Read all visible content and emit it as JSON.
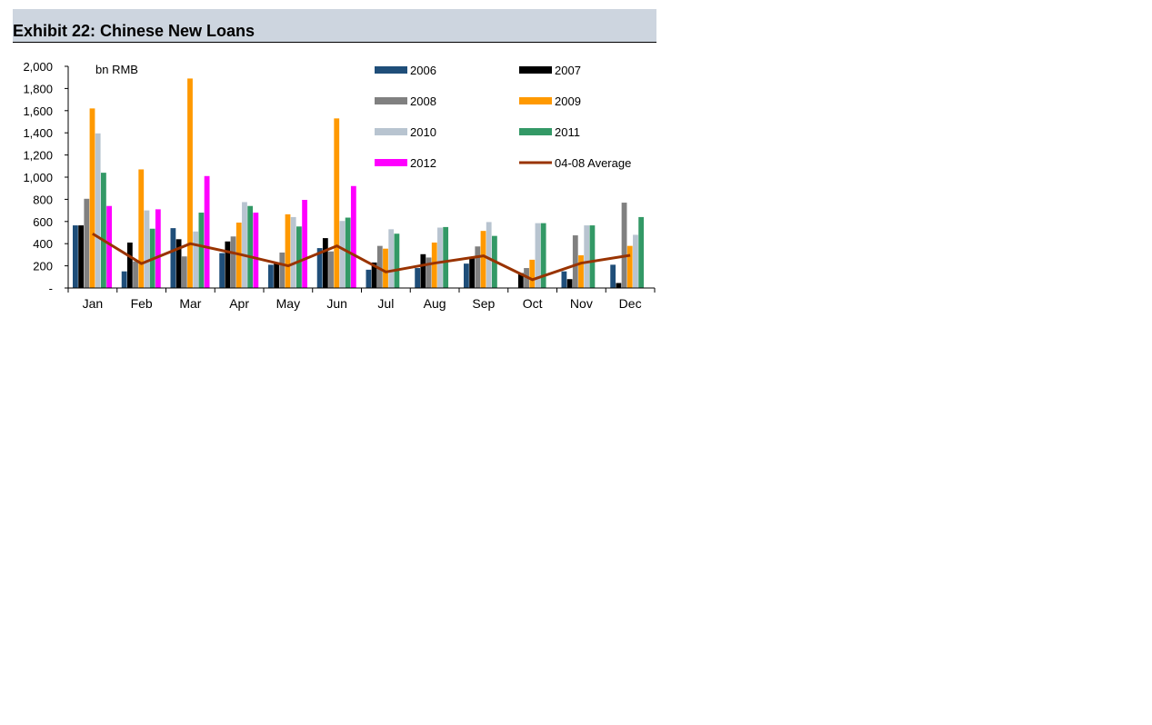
{
  "title": "Exhibit 22: Chinese New Loans",
  "chart_data": {
    "type": "bar",
    "unit_label": "bn RMB",
    "categories": [
      "Jan",
      "Feb",
      "Mar",
      "Apr",
      "May",
      "Jun",
      "Jul",
      "Aug",
      "Sep",
      "Oct",
      "Nov",
      "Dec"
    ],
    "ylim": [
      0,
      2000
    ],
    "yticks": [
      {
        "v": 0,
        "label": "-"
      },
      {
        "v": 200,
        "label": "200"
      },
      {
        "v": 400,
        "label": "400"
      },
      {
        "v": 600,
        "label": "600"
      },
      {
        "v": 800,
        "label": "800"
      },
      {
        "v": 1000,
        "label": "1,000"
      },
      {
        "v": 1200,
        "label": "1,200"
      },
      {
        "v": 1400,
        "label": "1,400"
      },
      {
        "v": 1600,
        "label": "1,600"
      },
      {
        "v": 1800,
        "label": "1,800"
      },
      {
        "v": 2000,
        "label": "2,000"
      }
    ],
    "series": [
      {
        "name": "2006",
        "color": "#1f4e79",
        "values": [
          565,
          150,
          540,
          315,
          210,
          360,
          165,
          180,
          220,
          0,
          150,
          210
        ]
      },
      {
        "name": "2007",
        "color": "#000000",
        "values": [
          565,
          410,
          440,
          420,
          225,
          450,
          230,
          305,
          270,
          135,
          80,
          45
        ]
      },
      {
        "name": "2008",
        "color": "#808080",
        "values": [
          805,
          240,
          285,
          465,
          320,
          330,
          380,
          275,
          375,
          180,
          475,
          770
        ]
      },
      {
        "name": "2009",
        "color": "#ff9900",
        "values": [
          1620,
          1070,
          1890,
          590,
          665,
          1530,
          355,
          410,
          515,
          255,
          295,
          380
        ]
      },
      {
        "name": "2010",
        "color": "#b8c4d0",
        "values": [
          1395,
          700,
          510,
          775,
          640,
          605,
          530,
          545,
          595,
          585,
          565,
          480
        ]
      },
      {
        "name": "2011",
        "color": "#339966",
        "values": [
          1040,
          535,
          680,
          740,
          555,
          635,
          490,
          550,
          470,
          585,
          565,
          640
        ]
      },
      {
        "name": "2012",
        "color": "#ff00ff",
        "values": [
          740,
          710,
          1010,
          680,
          795,
          920,
          null,
          null,
          null,
          null,
          null,
          null
        ]
      }
    ],
    "line_series": {
      "name": "04-08 Average",
      "color": "#993300",
      "values": [
        490,
        220,
        400,
        305,
        200,
        380,
        145,
        225,
        290,
        75,
        225,
        295
      ]
    },
    "legend_position": "top-right"
  }
}
